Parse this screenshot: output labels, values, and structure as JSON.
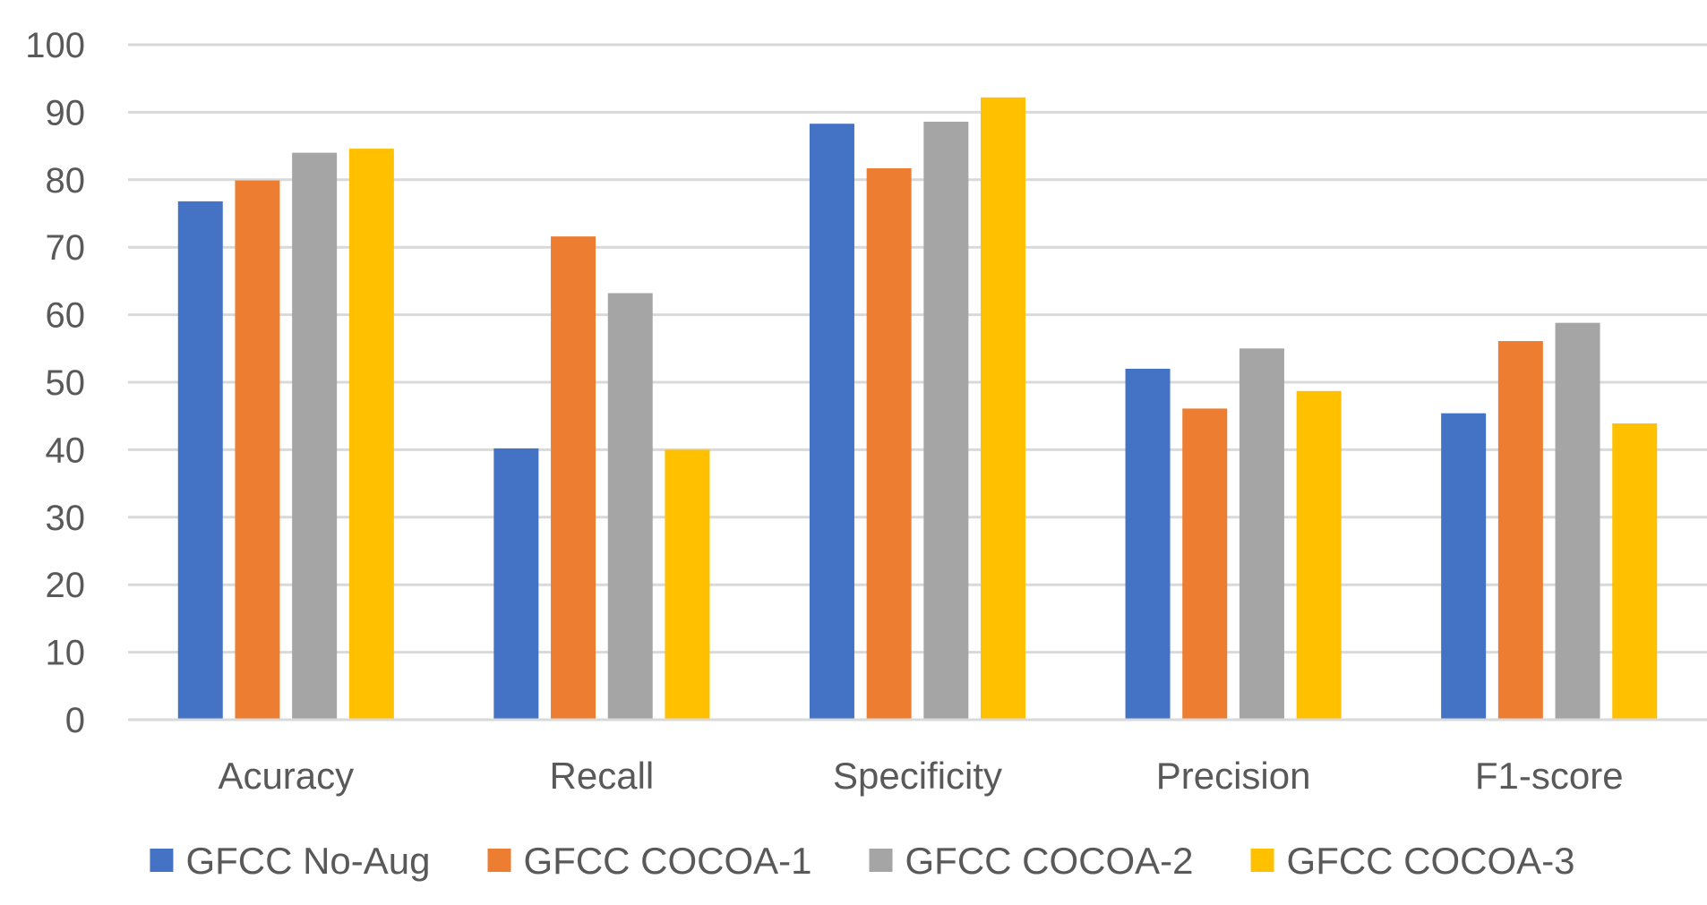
{
  "chart_data": {
    "type": "bar",
    "title": "",
    "xlabel": "",
    "ylabel": "",
    "ylim": [
      0,
      100
    ],
    "yticks": [
      0,
      10,
      20,
      30,
      40,
      50,
      60,
      70,
      80,
      90,
      100
    ],
    "grid": true,
    "legend_position": "bottom",
    "categories": [
      "Acuracy",
      "Recall",
      "Specificity",
      "Precision",
      "F1-score"
    ],
    "series": [
      {
        "name": "GFCC No-Aug",
        "color": "#4472c4",
        "values": [
          76.8,
          40.2,
          88.3,
          52.0,
          45.4
        ]
      },
      {
        "name": "GFCC COCOA-1",
        "color": "#ed7d31",
        "values": [
          79.9,
          71.6,
          81.7,
          46.1,
          56.1
        ]
      },
      {
        "name": "GFCC COCOA-2",
        "color": "#a5a5a5",
        "values": [
          84.0,
          63.2,
          88.6,
          55.0,
          58.8
        ]
      },
      {
        "name": "GFCC COCOA-3",
        "color": "#ffc000",
        "values": [
          84.6,
          40.0,
          92.2,
          48.7,
          43.9
        ]
      }
    ]
  }
}
